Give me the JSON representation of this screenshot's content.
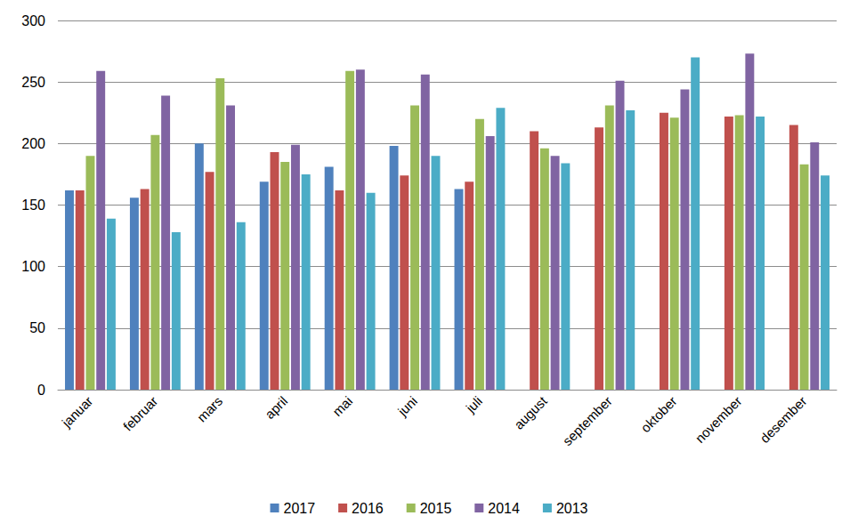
{
  "chart_data": {
    "type": "bar",
    "categories": [
      "januar",
      "februar",
      "mars",
      "april",
      "mai",
      "juni",
      "juli",
      "august",
      "september",
      "oktober",
      "november",
      "desember"
    ],
    "series": [
      {
        "name": "2017",
        "color": "#4f81bd",
        "values": [
          162,
          156,
          200,
          169,
          181,
          198,
          163,
          null,
          null,
          null,
          null,
          null
        ]
      },
      {
        "name": "2016",
        "color": "#c0504d",
        "values": [
          162,
          163,
          177,
          193,
          162,
          174,
          169,
          210,
          213,
          225,
          222,
          215
        ]
      },
      {
        "name": "2015",
        "color": "#9bbb59",
        "values": [
          190,
          207,
          253,
          185,
          259,
          231,
          220,
          196,
          231,
          221,
          223,
          183
        ]
      },
      {
        "name": "2014",
        "color": "#8064a2",
        "values": [
          259,
          239,
          231,
          199,
          260,
          256,
          206,
          190,
          251,
          244,
          273,
          201
        ]
      },
      {
        "name": "2013",
        "color": "#4bacc6",
        "values": [
          139,
          128,
          136,
          175,
          160,
          190,
          229,
          184,
          227,
          270,
          222,
          174
        ]
      }
    ],
    "ylim": [
      0,
      300
    ],
    "yticks": [
      0,
      50,
      100,
      150,
      200,
      250,
      300
    ],
    "grid": true,
    "legend": "bottom"
  }
}
